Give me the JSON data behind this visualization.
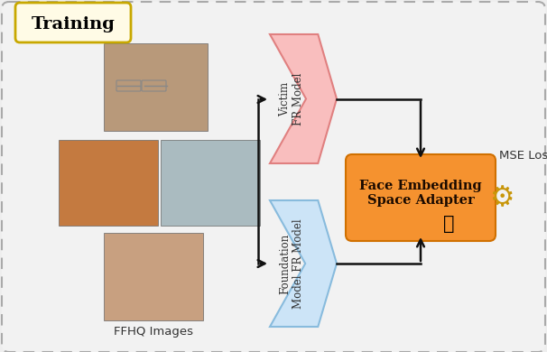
{
  "fig_width": 6.06,
  "fig_height": 3.9,
  "dpi": 100,
  "bg_color": "#eeeeee",
  "inner_bg": "#f2f2f2",
  "border_color": "#aaaaaa",
  "title_text": "Training",
  "title_box_color": "#fffbe6",
  "title_border_color": "#c8a800",
  "victim_label": "Victim\nFR Model",
  "victim_color": "#f9bebe",
  "victim_edge_color": "#e08080",
  "foundation_label": "Foundation\nModel FR Model",
  "foundation_color": "#cce4f7",
  "foundation_edge_color": "#88bbdd",
  "adapter_label": "Face Embedding\nSpace Adapter",
  "adapter_color": "#f5922f",
  "adapter_edge_color": "#d07000",
  "ffhq_label": "FFHQ Images",
  "mse_label": "MSE Loss",
  "arrow_color": "#111111",
  "face1_color": "#b8997a",
  "face2_color": "#c47a40",
  "face3_color": "#aabbc0",
  "face4_color": "#c8a080"
}
